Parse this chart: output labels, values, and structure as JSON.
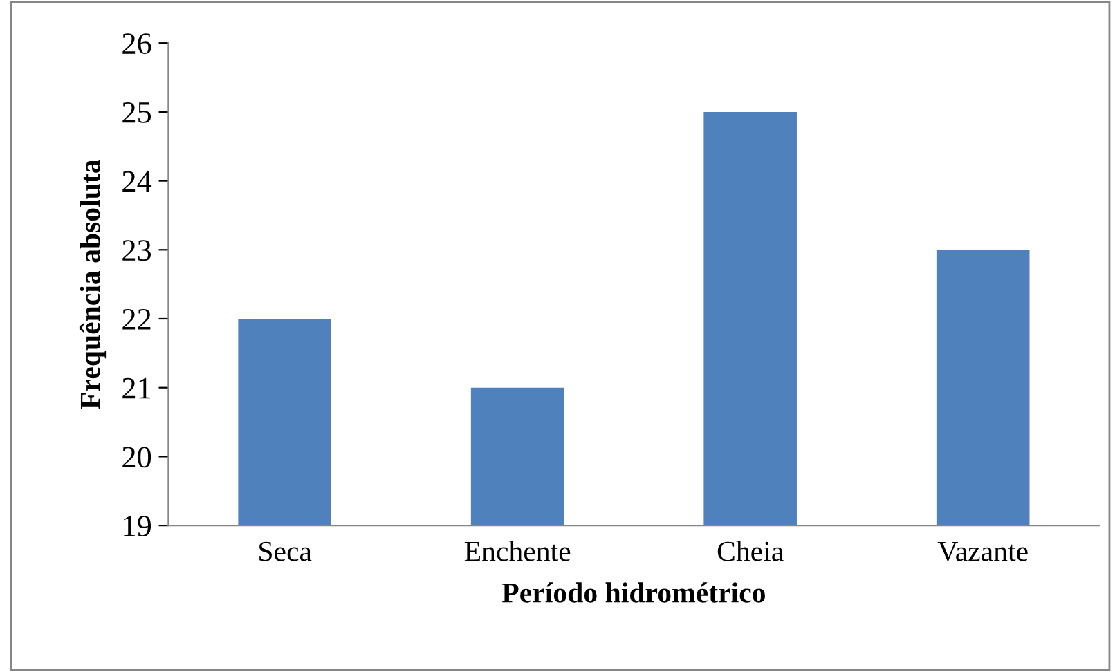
{
  "chart_data": {
    "type": "bar",
    "xlabel": "Período hidrométrico",
    "ylabel": "Frequência absoluta",
    "categories": [
      "Seca",
      "Enchente",
      "Cheia",
      "Vazante"
    ],
    "values": [
      22,
      21,
      25,
      23
    ],
    "color": "#4f81bd",
    "ylim": [
      19,
      26
    ],
    "yticks": [
      19,
      20,
      21,
      22,
      23,
      24,
      25,
      26
    ],
    "grid": false,
    "legend": false
  }
}
